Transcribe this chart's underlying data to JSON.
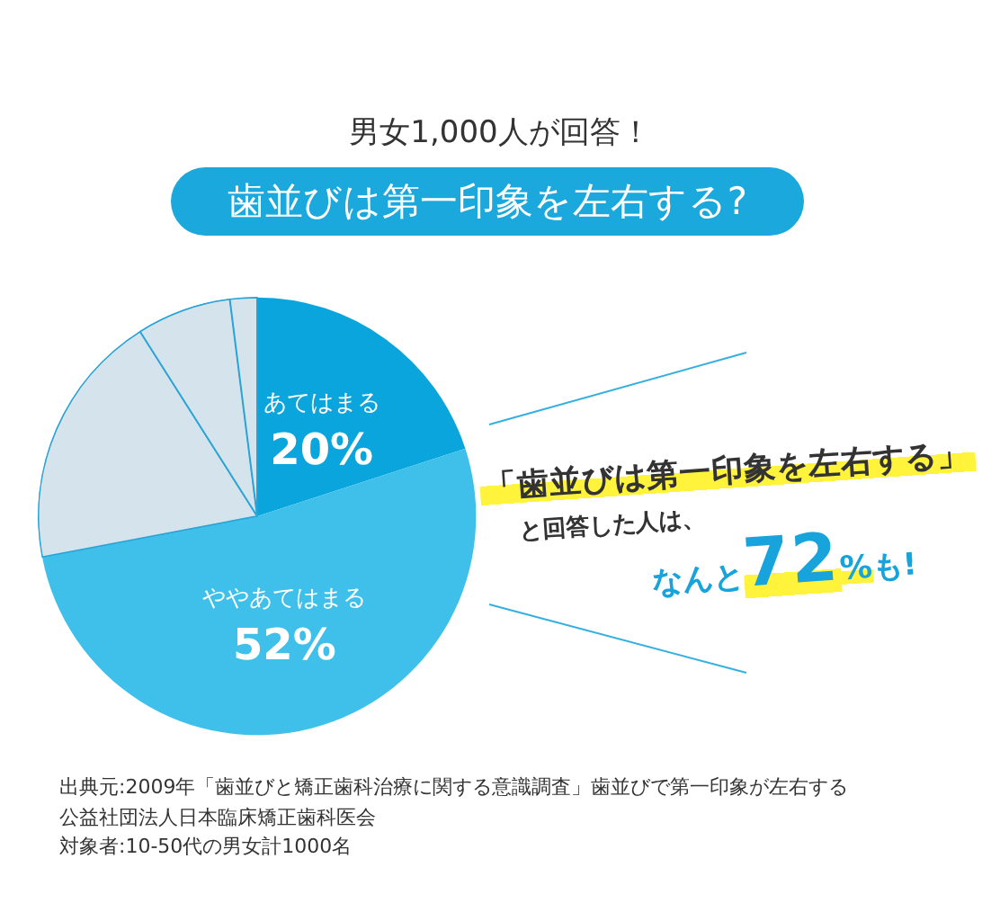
{
  "chart_data": {
    "type": "pie",
    "title": "歯並びは第一印象を左右する?",
    "subtitle": "男女1,000人が回答！",
    "categories": [
      "あてはまる",
      "ややあてはまる",
      null,
      null,
      null
    ],
    "values": [
      20,
      52,
      19,
      7,
      2
    ],
    "colors": [
      "#0ba5dd",
      "#3fc0ea",
      "#d5e4ec",
      "#d5e4ec",
      "#d5e4ec"
    ],
    "value_labels": [
      "20%",
      "52%",
      null,
      null,
      null
    ],
    "annotations": [
      "「歯並びは第一印象を左右する」",
      "と回答した人は、",
      "なんと72%も!",
      "出典元:2009年「歯並びと矯正歯科治療に関する意識調査」歯並びで第一印象が左右する",
      "公益社団法人日本臨床矯正歯科医会",
      "対象者:10-50代の男女計1000名"
    ]
  }
}
